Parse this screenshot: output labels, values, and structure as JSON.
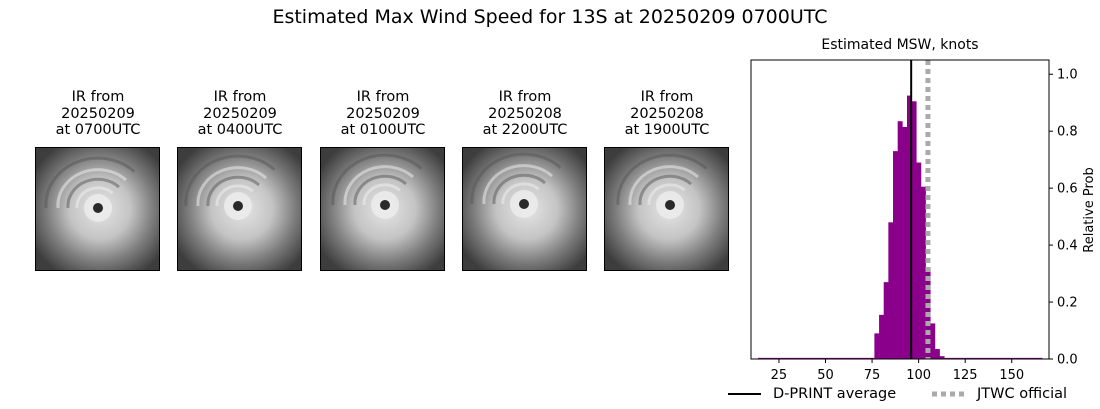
{
  "page_title": "Estimated Max Wind Speed for 13S at 20250209 0700UTC",
  "ir_panels": [
    {
      "line1": "IR from",
      "line2": "20250209",
      "line3": "at 0700UTC"
    },
    {
      "line1": "IR from",
      "line2": "20250209",
      "line3": "at 0400UTC"
    },
    {
      "line1": "IR from",
      "line2": "20250209",
      "line3": "at 0100UTC"
    },
    {
      "line1": "IR from",
      "line2": "20250208",
      "line3": "at 2200UTC"
    },
    {
      "line1": "IR from",
      "line2": "20250208",
      "line3": "at 1900UTC"
    }
  ],
  "chart_data": {
    "type": "bar",
    "title": "Estimated MSW, knots",
    "xlabel": "",
    "ylabel": "Relative Prob",
    "xlim": [
      10,
      170
    ],
    "ylim": [
      0,
      1.05
    ],
    "xticks": [
      25,
      50,
      75,
      100,
      125,
      150
    ],
    "yticks": [
      0.0,
      0.2,
      0.4,
      0.6,
      0.8,
      1.0
    ],
    "ytick_labels": [
      "0.0",
      "0.2",
      "0.4",
      "0.6",
      "0.8",
      "1.0"
    ],
    "y_axis_side": "right",
    "bar_color": "#8b008b",
    "bin_width": 2.5,
    "bins": [
      {
        "x": 15.0,
        "y": 0.004
      },
      {
        "x": 17.5,
        "y": 0.004
      },
      {
        "x": 20.0,
        "y": 0.004
      },
      {
        "x": 22.5,
        "y": 0.004
      },
      {
        "x": 25.0,
        "y": 0.004
      },
      {
        "x": 27.5,
        "y": 0.004
      },
      {
        "x": 30.0,
        "y": 0.004
      },
      {
        "x": 32.5,
        "y": 0.004
      },
      {
        "x": 35.0,
        "y": 0.004
      },
      {
        "x": 37.5,
        "y": 0.004
      },
      {
        "x": 40.0,
        "y": 0.004
      },
      {
        "x": 42.5,
        "y": 0.004
      },
      {
        "x": 45.0,
        "y": 0.004
      },
      {
        "x": 47.5,
        "y": 0.004
      },
      {
        "x": 50.0,
        "y": 0.004
      },
      {
        "x": 52.5,
        "y": 0.004
      },
      {
        "x": 55.0,
        "y": 0.004
      },
      {
        "x": 57.5,
        "y": 0.004
      },
      {
        "x": 60.0,
        "y": 0.004
      },
      {
        "x": 62.5,
        "y": 0.004
      },
      {
        "x": 65.0,
        "y": 0.004
      },
      {
        "x": 67.5,
        "y": 0.004
      },
      {
        "x": 70.0,
        "y": 0.004
      },
      {
        "x": 72.5,
        "y": 0.004
      },
      {
        "x": 75.0,
        "y": 0.004
      },
      {
        "x": 77.5,
        "y": 0.09
      },
      {
        "x": 80.0,
        "y": 0.155
      },
      {
        "x": 82.5,
        "y": 0.27
      },
      {
        "x": 85.0,
        "y": 0.48
      },
      {
        "x": 87.5,
        "y": 0.73
      },
      {
        "x": 90.0,
        "y": 0.835
      },
      {
        "x": 92.5,
        "y": 0.815
      },
      {
        "x": 95.0,
        "y": 0.925
      },
      {
        "x": 97.5,
        "y": 0.905
      },
      {
        "x": 100.0,
        "y": 0.69
      },
      {
        "x": 102.5,
        "y": 0.605
      },
      {
        "x": 105.0,
        "y": 0.32
      },
      {
        "x": 107.5,
        "y": 0.125
      },
      {
        "x": 110.0,
        "y": 0.035
      },
      {
        "x": 112.5,
        "y": 0.01
      },
      {
        "x": 115.0,
        "y": 0.004
      },
      {
        "x": 117.5,
        "y": 0.004
      },
      {
        "x": 120.0,
        "y": 0.004
      },
      {
        "x": 122.5,
        "y": 0.004
      },
      {
        "x": 125.0,
        "y": 0.004
      },
      {
        "x": 127.5,
        "y": 0.004
      },
      {
        "x": 130.0,
        "y": 0.004
      },
      {
        "x": 132.5,
        "y": 0.004
      },
      {
        "x": 135.0,
        "y": 0.004
      },
      {
        "x": 137.5,
        "y": 0.004
      },
      {
        "x": 140.0,
        "y": 0.004
      },
      {
        "x": 142.5,
        "y": 0.004
      },
      {
        "x": 145.0,
        "y": 0.004
      },
      {
        "x": 147.5,
        "y": 0.004
      },
      {
        "x": 150.0,
        "y": 0.004
      },
      {
        "x": 152.5,
        "y": 0.004
      },
      {
        "x": 155.0,
        "y": 0.004
      },
      {
        "x": 157.5,
        "y": 0.004
      },
      {
        "x": 160.0,
        "y": 0.004
      },
      {
        "x": 162.5,
        "y": 0.004
      },
      {
        "x": 165.0,
        "y": 0.004
      }
    ],
    "reference_lines": [
      {
        "name": "D-PRINT average",
        "x": 96,
        "color": "#000000",
        "style": "solid"
      },
      {
        "name": "JTWC official",
        "x": 105,
        "color": "#aaaaaa",
        "style": "dotted"
      }
    ],
    "legend_position": "bottom"
  }
}
